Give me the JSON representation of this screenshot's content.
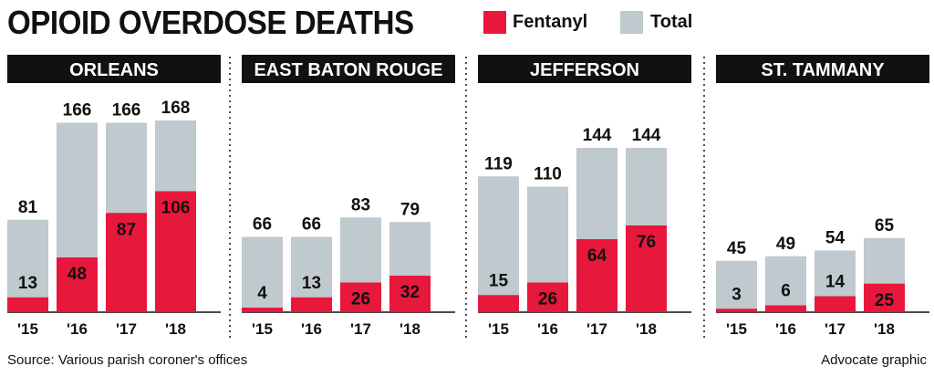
{
  "title": "OPIOID OVERDOSE DEATHS",
  "legend": [
    {
      "label": "Fentanyl",
      "color": "#e8173c"
    },
    {
      "label": "Total",
      "color": "#bfc9ce"
    }
  ],
  "chart_data": [
    {
      "type": "bar",
      "title": "ORLEANS",
      "categories": [
        "'15",
        "'16",
        "'17",
        "'18"
      ],
      "series": [
        {
          "name": "Total",
          "values": [
            81,
            166,
            166,
            168
          ]
        },
        {
          "name": "Fentanyl",
          "values": [
            13,
            48,
            87,
            106
          ]
        }
      ]
    },
    {
      "type": "bar",
      "title": "EAST BATON ROUGE",
      "categories": [
        "'15",
        "'16",
        "'17",
        "'18"
      ],
      "series": [
        {
          "name": "Total",
          "values": [
            66,
            66,
            83,
            79
          ]
        },
        {
          "name": "Fentanyl",
          "values": [
            4,
            13,
            26,
            32
          ]
        }
      ]
    },
    {
      "type": "bar",
      "title": "JEFFERSON",
      "categories": [
        "'15",
        "'16",
        "'17",
        "'18"
      ],
      "series": [
        {
          "name": "Total",
          "values": [
            119,
            110,
            144,
            144
          ]
        },
        {
          "name": "Fentanyl",
          "values": [
            15,
            26,
            64,
            76
          ]
        }
      ]
    },
    {
      "type": "bar",
      "title": "ST. TAMMANY",
      "categories": [
        "'15",
        "'16",
        "'17",
        "'18"
      ],
      "series": [
        {
          "name": "Total",
          "values": [
            45,
            49,
            54,
            65
          ]
        },
        {
          "name": "Fentanyl",
          "values": [
            3,
            6,
            14,
            25
          ]
        }
      ]
    }
  ],
  "colors": {
    "fentanyl": "#e8173c",
    "total": "#bfc9ce",
    "header": "#111111"
  },
  "source": "Source: Various parish coroner's offices",
  "credit": "Advocate graphic"
}
